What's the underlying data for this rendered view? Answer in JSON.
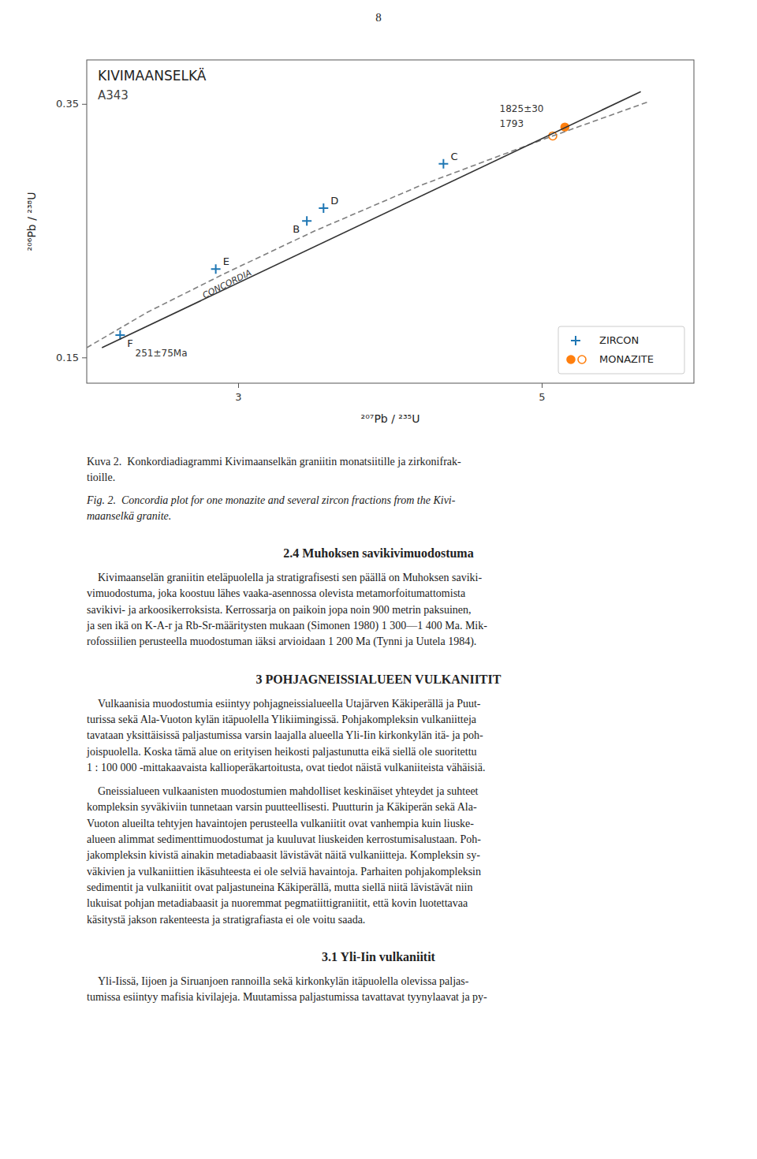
{
  "page_number": "8",
  "chart_data": {
    "type": "scatter",
    "title": "KIVIMAANSELKÄ",
    "subtitle": "A343",
    "xlabel": "²⁰⁷Pb / ²³⁵U",
    "ylabel": "²⁰⁶Pb / ²³⁸U",
    "xlim": [
      2.0,
      6.0
    ],
    "ylim": [
      0.13,
      0.385
    ],
    "xticks": [
      3,
      5
    ],
    "yticks": [
      0.15,
      0.35
    ],
    "grid": false,
    "legend": "lower right",
    "series": [
      {
        "name": "ZIRCON",
        "type": "scatter",
        "marker": "plus",
        "color": "#1f77b4",
        "x": [
          2.22,
          2.85,
          3.45,
          3.56,
          4.35
        ],
        "values": [
          0.168,
          0.22,
          0.258,
          0.268,
          0.303
        ],
        "labels": [
          "F",
          "E",
          "B",
          "D",
          "C"
        ]
      },
      {
        "name": "MONAZITE",
        "type": "scatter",
        "marker": "circle",
        "color": "#ff7f0e",
        "colors": [
          "#ff7f0e",
          "#ffffff"
        ],
        "x": [
          5.15,
          5.07
        ],
        "values": [
          0.332,
          0.325
        ]
      },
      {
        "type": "line",
        "line_style": "dashed",
        "color": "#7f7f7f",
        "x": [
          2.0,
          2.4,
          2.9,
          3.5,
          4.2,
          5.0,
          5.7
        ],
        "values": [
          0.158,
          0.186,
          0.216,
          0.25,
          0.286,
          0.322,
          0.352
        ]
      },
      {
        "type": "line",
        "line_style": "solid",
        "color": "#333333",
        "x": [
          2.1,
          5.65
        ],
        "values": [
          0.158,
          0.36
        ]
      }
    ],
    "annotations": [
      {
        "text": "CONCORDIA",
        "x": 2.9,
        "y": 0.214
      },
      {
        "text": "1825±30",
        "x": 4.72,
        "y": 0.344
      },
      {
        "text": "1793",
        "x": 4.72,
        "y": 0.332
      },
      {
        "text": "251±75Ma",
        "x": 2.32,
        "y": 0.151
      }
    ]
  },
  "caption_finnish": "Kuva 2.  Konkordiadiagrammi Kivimaanselkän graniitin monatsiitille ja zirkonifrak-\ntioille.",
  "caption_english": "Fig. 2.  Concordia plot for one monazite and several zircon fractions from the Kivi-\nmaanselkä granite.",
  "sections": [
    {
      "title": "2.4  Muhoksen savikivimuodostuma",
      "paragraphs": [
        "    Kivimaanselän graniitin eteläpuolella ja stratigrafisesti sen päällä on Muhoksen saviki-\nvimuodostuma, joka koostuu lähes vaaka-asennossa olevista metamorfoitumattomista\nsavikivi- ja arkoosikerroksista. Kerrossarja on paikoin jopa noin 900 metrin paksuinen,\nja sen ikä on K-A-r ja Rb-Sr-määritysten mukaan (Simonen 1980) 1 300—1 400 Ma. Mik-\nrofossiilien perusteella muodostuman iäksi arvioidaan 1 200 Ma (Tynni ja Uutela 1984)."
      ]
    },
    {
      "title": "3  POHJAGNEISSIALUEEN VULKANIITIT",
      "paragraphs": [
        "    Vulkaanisia muodostumia esiintyy pohjagneissialueella Utajärven Käkiperällä ja Puut-\nturissa sekä Ala-Vuoton kylän itäpuolella Ylikiimingissä. Pohjakompleksin vulkaniitteja\ntavataan yksittäisissä paljastumissa varsin laajalla alueella Yli-Iin kirkonkylän itä- ja poh-\njoispuolella. Koska tämä alue on erityisen heikosti paljastunutta eikä siellä ole suoritettu\n1 : 100 000 -mittakaavaista kallioperäkartoitusta, ovat tiedot näistä vulkaniiteista vähäisiä.",
        "    Gneissialueen vulkaanisten muodostumien mahdolliset keskinäiset yhteydet ja suhteet\nkompleksin syväkiviin tunnetaan varsin puutteellisesti. Puutturin ja Käkiperän sekä Ala-\nVuoton alueilta tehtyjen havaintojen perusteella vulkaniitit ovat vanhempia kuin liuske-\nalueen alimmat sedimenttimuodostumat ja kuuluvat liuskeiden kerrostumisalustaan. Poh-\njakompleksin kivistä ainakin metadiabaasit lävistävät näitä vulkaniitteja. Kompleksin sy-\nväkivien ja vulkaniittien ikäsuhteesta ei ole selviä havaintoja. Parhaiten pohjakompleksin\nsedimentit ja vulkaniitit ovat paljastuneina Käkiperällä, mutta siellä niitä lävistävät niin\nlukuisat pohjan metadiabaasit ja nuoremmat pegmatiittigraniitit, että kovin luotettavaa\nkäsitystä jakson rakenteesta ja stratigrafiasta ei ole voitu saada."
      ]
    },
    {
      "title": "3.1  Yli-Iin vulkaniitit",
      "paragraphs": [
        "    Yli-Iissä, Iijoen ja Siruanjoen rannoilla sekä kirkonkylän itäpuolella olevissa paljas-\ntumissa esiintyy mafisia kivilajeja. Muutamissa paljastumissa tavattavat tyynylaavat ja py-"
      ]
    }
  ]
}
